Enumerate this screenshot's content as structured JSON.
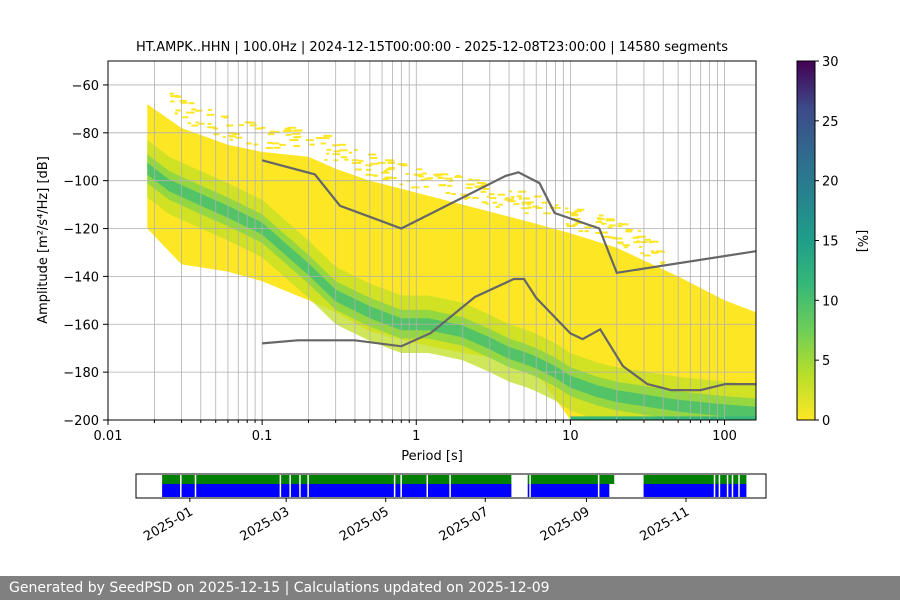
{
  "chart_data": [
    {
      "type": "heatmap",
      "title": "HT.AMPK..HHN | 100.0Hz | 2024-12-15T00:00:00 - 2025-12-08T23:00:00 | 14580 segments",
      "xlabel": "Period [s]",
      "ylabel": "Amplitude [m²/s⁴/Hz] [dB]",
      "x_scale": "log",
      "xlim": [
        0.01,
        160
      ],
      "ylim": [
        -200,
        -50
      ],
      "x_tick_labels": [
        "0.01",
        "0.1",
        "1",
        "10",
        "100"
      ],
      "y_tick_labels": [
        "−200",
        "−180",
        "−160",
        "−140",
        "−120",
        "−100",
        "−80",
        "−60"
      ],
      "grid": true,
      "colormap": "viridis",
      "colorbar": {
        "label": "[%]",
        "range": [
          0,
          30
        ],
        "ticks": [
          "0",
          "5",
          "10",
          "15",
          "20",
          "25",
          "30"
        ]
      },
      "density_mode": {
        "period": [
          0.018,
          0.025,
          0.04,
          0.06,
          0.1,
          0.15,
          0.2,
          0.3,
          0.5,
          0.8,
          1.2,
          2,
          3,
          4,
          5,
          6,
          8,
          10,
          15,
          20,
          50,
          100,
          160
        ],
        "db": [
          -95,
          -102,
          -108,
          -113,
          -120,
          -130,
          -137,
          -148,
          -155,
          -160,
          -160,
          -163,
          -168,
          -172,
          -174,
          -176,
          -180,
          -184,
          -188,
          -190,
          -194,
          -196,
          -197
        ]
      },
      "psd_spread": {
        "period": [
          0.018,
          0.03,
          0.06,
          0.1,
          0.2,
          0.3,
          0.5,
          1,
          2,
          4,
          6,
          10,
          20,
          50,
          100,
          160
        ],
        "upper_db": [
          -68,
          -78,
          -85,
          -88,
          -90,
          -95,
          -100,
          -105,
          -110,
          -115,
          -118,
          -122,
          -128,
          -140,
          -150,
          -155
        ],
        "lower_db": [
          -120,
          -135,
          -138,
          -142,
          -150,
          -155,
          -163,
          -168,
          -172,
          -175,
          -180,
          -200,
          -200,
          -200,
          -200,
          -200
        ]
      },
      "high_noise_model": {
        "period": [
          0.1,
          0.22,
          0.32,
          0.8,
          3.8,
          4.6,
          6.3,
          7.9,
          15.4,
          20,
          354.8
        ],
        "db": [
          -91.5,
          -97.4,
          -110.5,
          -120,
          -98,
          -96.5,
          -101,
          -113.5,
          -120,
          -138.5,
          -126
        ]
      },
      "low_noise_model": {
        "period": [
          0.1,
          0.17,
          0.4,
          0.8,
          1.24,
          2.4,
          4.3,
          5,
          6,
          10,
          12,
          15.6,
          21.9,
          31.6,
          45,
          70,
          101,
          154,
          328
        ],
        "db": [
          -168,
          -166.7,
          -166.7,
          -169.2,
          -163.7,
          -148.6,
          -141.1,
          -141.1,
          -149,
          -163.8,
          -166.2,
          -162.1,
          -177.5,
          -185,
          -187.5,
          -187.5,
          -185,
          -185,
          -187.5
        ]
      }
    },
    {
      "type": "timeline",
      "date_range": [
        "2024-12-15",
        "2025-12-08"
      ],
      "x_tick_labels": [
        "2025-01",
        "2025-03",
        "2025-05",
        "2025-07",
        "2025-09",
        "2025-11"
      ],
      "colors": {
        "top": "#008000",
        "bottom": "#0000ff"
      },
      "coverage_top": [
        [
          "2024-12-15",
          "2025-07-17"
        ],
        [
          "2025-07-27",
          "2025-09-18"
        ],
        [
          "2025-10-06",
          "2025-12-08"
        ]
      ],
      "coverage_bottom": [
        [
          "2024-12-15",
          "2025-07-17"
        ],
        [
          "2025-07-27",
          "2025-09-15"
        ],
        [
          "2025-10-06",
          "2025-12-08"
        ]
      ],
      "gaps": [
        "2024-12-26",
        "2025-01-04",
        "2025-02-25",
        "2025-03-03",
        "2025-03-09",
        "2025-03-14",
        "2025-05-06",
        "2025-05-10",
        "2025-05-26",
        "2025-06-09",
        "2025-07-28",
        "2025-09-08",
        "2025-11-18",
        "2025-11-21",
        "2025-11-26",
        "2025-11-29",
        "2025-12-03"
      ]
    }
  ],
  "footer": {
    "text": "Generated by SeedPSD on 2025-12-15 | Calculations updated on 2025-12-09"
  },
  "colors": {
    "noise_model": "#666666",
    "grid": "#b0b0b0"
  }
}
